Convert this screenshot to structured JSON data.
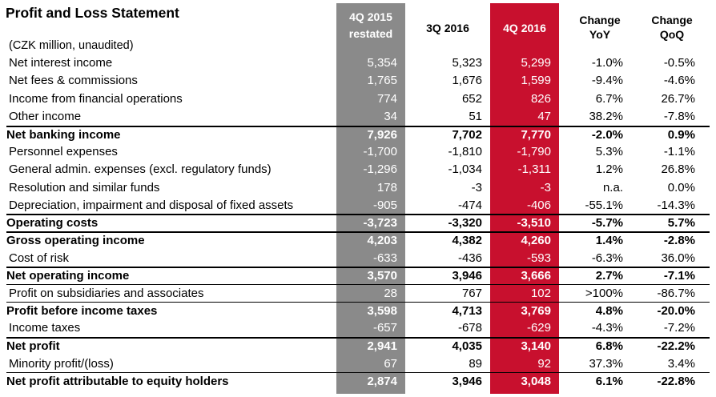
{
  "title": "Profit and Loss Statement",
  "units": "(CZK million, unaudited)",
  "headers": {
    "col1_line1": "4Q 2015",
    "col1_line2": "restated",
    "col2": "3Q 2016",
    "col3": "4Q 2016",
    "col4_line1": "Change",
    "col4_line2": "YoY",
    "col5_line1": "Change",
    "col5_line2": "QoQ"
  },
  "colors": {
    "col_4q2015": "#8a8a8a",
    "col_4q2016": "#c8102e"
  },
  "rows": [
    {
      "label": "Net interest income",
      "v1": "5,354",
      "v2": "5,323",
      "v3": "5,299",
      "yoy": "-1.0%",
      "qoq": "-0.5%"
    },
    {
      "label": "Net fees & commissions",
      "v1": "1,765",
      "v2": "1,676",
      "v3": "1,599",
      "yoy": "-9.4%",
      "qoq": "-4.6%"
    },
    {
      "label": "Income from financial operations",
      "v1": "774",
      "v2": "652",
      "v3": "826",
      "yoy": "6.7%",
      "qoq": "26.7%"
    },
    {
      "label": "Other income",
      "v1": "34",
      "v2": "51",
      "v3": "47",
      "yoy": "38.2%",
      "qoq": "-7.8%"
    },
    {
      "label": "Net banking income",
      "v1": "7,926",
      "v2": "7,702",
      "v3": "7,770",
      "yoy": "-2.0%",
      "qoq": "0.9%"
    },
    {
      "label": "Personnel expenses",
      "v1": "-1,700",
      "v2": "-1,810",
      "v3": "-1,790",
      "yoy": "5.3%",
      "qoq": "-1.1%"
    },
    {
      "label": "General admin. expenses (excl. regulatory funds)",
      "v1": "-1,296",
      "v2": "-1,034",
      "v3": "-1,311",
      "yoy": "1.2%",
      "qoq": "26.8%"
    },
    {
      "label": "Resolution and similar funds",
      "v1": "178",
      "v2": "-3",
      "v3": "-3",
      "yoy": "n.a.",
      "qoq": "0.0%"
    },
    {
      "label": "Depreciation, impairment and disposal of fixed assets",
      "v1": "-905",
      "v2": "-474",
      "v3": "-406",
      "yoy": "-55.1%",
      "qoq": "-14.3%"
    },
    {
      "label": "Operating costs",
      "v1": "-3,723",
      "v2": "-3,320",
      "v3": "-3,510",
      "yoy": "-5.7%",
      "qoq": "5.7%"
    },
    {
      "label": "Gross operating income",
      "v1": "4,203",
      "v2": "4,382",
      "v3": "4,260",
      "yoy": "1.4%",
      "qoq": "-2.8%"
    },
    {
      "label": "Cost of risk",
      "v1": "-633",
      "v2": "-436",
      "v3": "-593",
      "yoy": "-6.3%",
      "qoq": "36.0%"
    },
    {
      "label": "Net operating income",
      "v1": "3,570",
      "v2": "3,946",
      "v3": "3,666",
      "yoy": "2.7%",
      "qoq": "-7.1%"
    },
    {
      "label": "Profit on subsidiaries and associates",
      "v1": "28",
      "v2": "767",
      "v3": "102",
      "yoy": ">100%",
      "qoq": "-86.7%"
    },
    {
      "label": "Profit before income taxes",
      "v1": "3,598",
      "v2": "4,713",
      "v3": "3,769",
      "yoy": "4.8%",
      "qoq": "-20.0%"
    },
    {
      "label": "Income taxes",
      "v1": "-657",
      "v2": "-678",
      "v3": "-629",
      "yoy": "-4.3%",
      "qoq": "-7.2%"
    },
    {
      "label": "Net profit",
      "v1": "2,941",
      "v2": "4,035",
      "v3": "3,140",
      "yoy": "6.8%",
      "qoq": "-22.2%"
    },
    {
      "label": "Minority profit/(loss)",
      "v1": "67",
      "v2": "89",
      "v3": "92",
      "yoy": "37.3%",
      "qoq": "3.4%"
    },
    {
      "label": "Net profit attributable to equity holders",
      "v1": "2,874",
      "v2": "3,946",
      "v3": "3,048",
      "yoy": "6.1%",
      "qoq": "-22.8%"
    }
  ]
}
